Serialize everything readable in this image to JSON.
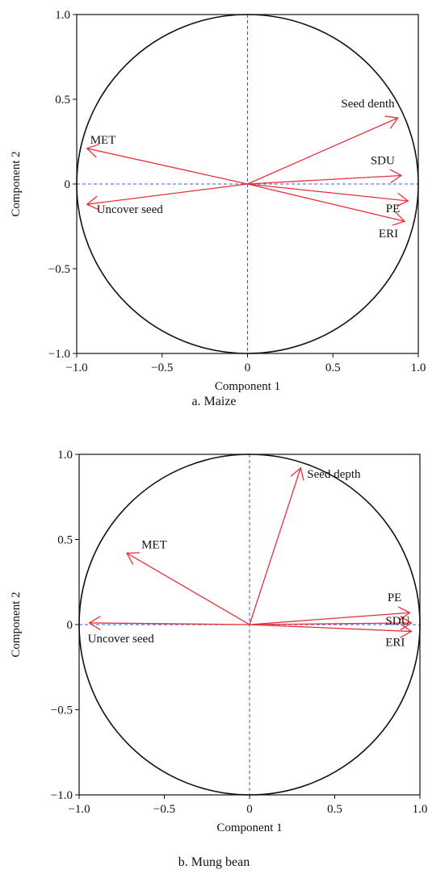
{
  "panels": [
    {
      "caption": "a. Maize"
    },
    {
      "caption": "b. Mung bean"
    }
  ],
  "colors": {
    "arrow": "#e8303a",
    "reference": "#3b5bdb",
    "circle": "#111111",
    "axis": "#111111"
  },
  "chart_data": [
    {
      "type": "scatter",
      "title": "",
      "xlabel": "Component 1",
      "ylabel": "Component 2",
      "xlim": [
        -1.0,
        1.0
      ],
      "ylim": [
        -1.0,
        1.0
      ],
      "xticks": [
        -1.0,
        -0.5,
        0,
        0.5,
        1.0
      ],
      "xtick_labels": [
        "−1.0",
        "−0.5",
        "0",
        "0.5",
        "1.0"
      ],
      "yticks": [
        -1.0,
        -0.5,
        0,
        0.5,
        1.0
      ],
      "ytick_labels": [
        "−1.0",
        "−0.5",
        "0",
        "0.5",
        "1.0"
      ],
      "unit_circle": true,
      "reference_lines": [
        0,
        0
      ],
      "grid": false,
      "legend": "none",
      "loadings": [
        {
          "label": "MET",
          "x": -0.94,
          "y": 0.21
        },
        {
          "label": "Uncover seed",
          "x": -0.94,
          "y": -0.12
        },
        {
          "label": "Seed denth",
          "x": 0.88,
          "y": 0.39
        },
        {
          "label": "SDU",
          "x": 0.9,
          "y": 0.05
        },
        {
          "label": "PE",
          "x": 0.94,
          "y": -0.1
        },
        {
          "label": "ERI",
          "x": 0.92,
          "y": -0.22
        }
      ]
    },
    {
      "type": "scatter",
      "title": "",
      "xlabel": "Component 1",
      "ylabel": "Component 2",
      "xlim": [
        -1.0,
        1.0
      ],
      "ylim": [
        -1.0,
        1.0
      ],
      "xticks": [
        -1.0,
        -0.5,
        0,
        0.5,
        1.0
      ],
      "xtick_labels": [
        "−1.0",
        "−0.5",
        "0",
        "0.5",
        "1.0"
      ],
      "yticks": [
        -1.0,
        -0.5,
        0,
        0.5,
        1.0
      ],
      "ytick_labels": [
        "−1.0",
        "−0.5",
        "0",
        "0.5",
        "1.0"
      ],
      "unit_circle": true,
      "reference_lines": [
        0,
        0
      ],
      "grid": false,
      "legend": "none",
      "loadings": [
        {
          "label": "Seed depth",
          "x": 0.3,
          "y": 0.92
        },
        {
          "label": "MET",
          "x": -0.72,
          "y": 0.42
        },
        {
          "label": "Uncover seed",
          "x": -0.94,
          "y": 0.01
        },
        {
          "label": "PE",
          "x": 0.94,
          "y": 0.07
        },
        {
          "label": "SDU",
          "x": 0.95,
          "y": 0.01
        },
        {
          "label": "ERI",
          "x": 0.95,
          "y": -0.04
        }
      ]
    }
  ]
}
